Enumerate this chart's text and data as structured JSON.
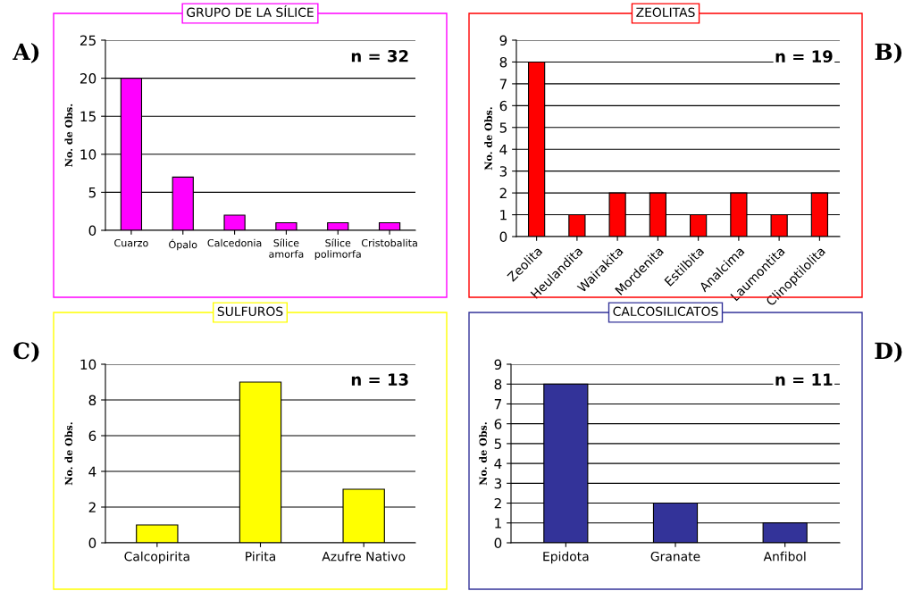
{
  "chart_data": [
    {
      "type": "bar",
      "title": "GRUPO DE LA SÍLICE",
      "ylabel": "No. de Obs.",
      "categories": [
        "Cuarzo",
        "Ópalo",
        "Calcedonia",
        "Sílice\namorfa",
        "Sílice\npolimorfa",
        "Cristobalita"
      ],
      "values": [
        20,
        7,
        2,
        1,
        1,
        1
      ],
      "color": "#ff00ff",
      "ylim": [
        0,
        25
      ],
      "yticks": [
        0,
        5,
        10,
        15,
        20,
        25
      ],
      "grid": "y",
      "annotations": [
        "A)",
        "n = 32"
      ]
    },
    {
      "type": "bar",
      "title": "ZEOLITAS",
      "ylabel": "No. de Obs.",
      "categories": [
        "Zeolita",
        "Heulandita",
        "Wairakita",
        "Mordenita",
        "Estilbita",
        "Analcima",
        "Laumontita",
        "Clinoptilolita"
      ],
      "values": [
        8,
        1,
        2,
        2,
        1,
        2,
        1,
        2
      ],
      "color": "#ff0000",
      "ylim": [
        0,
        9
      ],
      "yticks": [
        0,
        1,
        2,
        3,
        4,
        5,
        6,
        7,
        8,
        9
      ],
      "grid": "y",
      "annotations": [
        "B)",
        "n = 19"
      ]
    },
    {
      "type": "bar",
      "title": "SULFUROS",
      "ylabel": "No. de Obs.",
      "categories": [
        "Calcopirita",
        "Pirita",
        "Azufre Nativo"
      ],
      "values": [
        1,
        9,
        3
      ],
      "color": "#ffff00",
      "ylim": [
        0,
        10
      ],
      "yticks": [
        0,
        2,
        4,
        6,
        8,
        10
      ],
      "grid": "y",
      "annotations": [
        "C)",
        "n = 13"
      ]
    },
    {
      "type": "bar",
      "title": "CALCOSILICATOS",
      "ylabel": "No. de Obs.",
      "categories": [
        "Epidota",
        "Granate",
        "Anfibol"
      ],
      "values": [
        8,
        2,
        1
      ],
      "color": "#333399",
      "ylim": [
        0,
        9
      ],
      "yticks": [
        0,
        1,
        2,
        3,
        4,
        5,
        6,
        7,
        8,
        9
      ],
      "grid": "y",
      "annotations": [
        "D)",
        "n = 11"
      ]
    }
  ]
}
